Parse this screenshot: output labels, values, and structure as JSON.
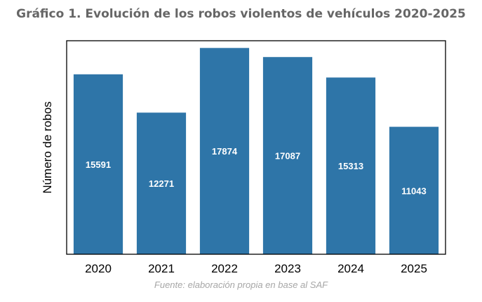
{
  "chart_data": {
    "type": "bar",
    "title": "Gráfico 1. Evolución de los robos violentos de vehículos 2020-2025",
    "categories": [
      "2020",
      "2021",
      "2022",
      "2023",
      "2024",
      "2025"
    ],
    "values": [
      15591,
      12271,
      17874,
      17087,
      15313,
      11043
    ],
    "xlabel": "",
    "ylabel": "Número de robos",
    "ylim": [
      0,
      18500
    ],
    "bar_color": "#2e75a8",
    "source": "Fuente: elaboración propia en base al SAF",
    "grid": false
  }
}
